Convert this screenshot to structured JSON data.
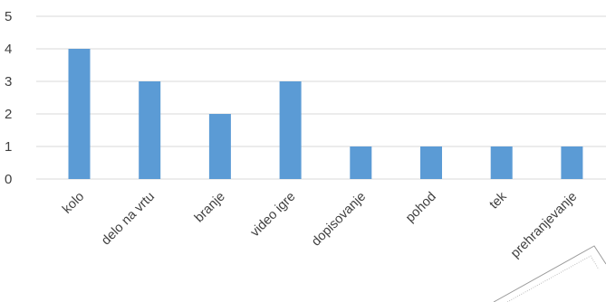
{
  "chart_data": {
    "type": "bar",
    "title": "",
    "xlabel": "",
    "ylabel": "",
    "categories": [
      "kolo",
      "delo na vrtu",
      "branje",
      "video igre",
      "dopisovanje",
      "pohod",
      "tek",
      "prehranjevanje"
    ],
    "values": [
      4,
      3,
      2,
      3,
      1,
      1,
      1,
      1
    ],
    "yticks": [
      "0",
      "1",
      "2",
      "3",
      "4",
      "5"
    ],
    "ylim": [
      0,
      5
    ],
    "grid": true,
    "legend": "none",
    "bar_color": "#5b9bd5",
    "grid_color": "#d9d9d9",
    "text_color": "#404040"
  }
}
